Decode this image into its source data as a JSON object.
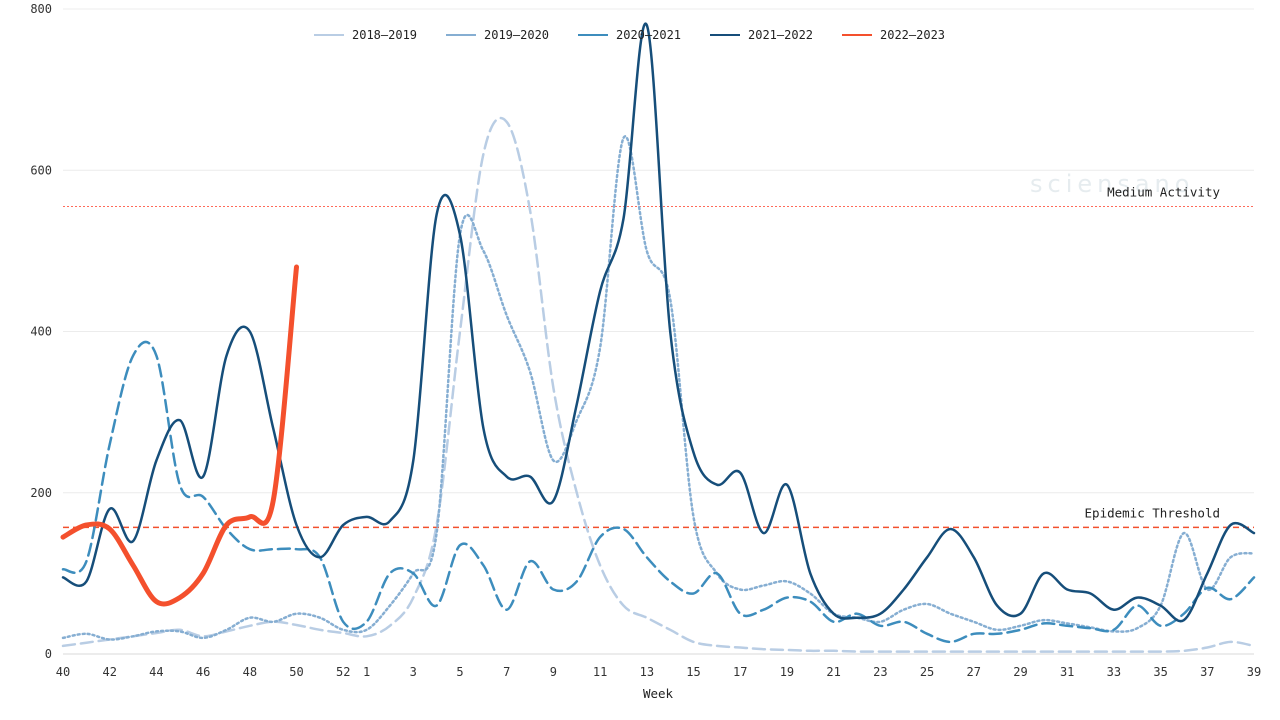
{
  "watermark": {
    "text": "sciensano"
  },
  "chart_data": {
    "type": "line",
    "title": "",
    "xlabel": "Week",
    "ylabel": "",
    "ylim": [
      0,
      800
    ],
    "yticks": [
      0,
      200,
      400,
      600,
      800
    ],
    "x": [
      40,
      41,
      42,
      43,
      44,
      45,
      46,
      47,
      48,
      49,
      50,
      51,
      52,
      1,
      2,
      3,
      4,
      5,
      6,
      7,
      8,
      9,
      10,
      11,
      12,
      13,
      14,
      15,
      16,
      17,
      18,
      19,
      20,
      21,
      22,
      23,
      24,
      25,
      26,
      27,
      28,
      29,
      30,
      31,
      32,
      33,
      34,
      35,
      36,
      37,
      38,
      39
    ],
    "xtick_labels": [
      "40",
      "42",
      "44",
      "46",
      "48",
      "50",
      "52",
      "1",
      "3",
      "5",
      "7",
      "9",
      "11",
      "13",
      "15",
      "17",
      "19",
      "21",
      "23",
      "25",
      "27",
      "29",
      "31",
      "33",
      "35",
      "37",
      "39"
    ],
    "grid": "horizontal",
    "legend_position": "top-center",
    "series": [
      {
        "name": "2018–2019",
        "color": "#b9cde4",
        "style": "dashed",
        "width": 2.5,
        "values": [
          10,
          14,
          18,
          22,
          26,
          30,
          22,
          28,
          35,
          40,
          36,
          30,
          26,
          22,
          35,
          70,
          160,
          400,
          620,
          660,
          550,
          330,
          200,
          110,
          60,
          45,
          30,
          15,
          10,
          8,
          6,
          5,
          4,
          4,
          3,
          3,
          3,
          3,
          3,
          3,
          3,
          3,
          3,
          3,
          3,
          3,
          3,
          3,
          4,
          8,
          15,
          10
        ]
      },
      {
        "name": "2019–2020",
        "color": "#86aed2",
        "style": "dotted",
        "width": 2.5,
        "values": [
          20,
          25,
          18,
          22,
          28,
          28,
          20,
          30,
          45,
          40,
          50,
          45,
          30,
          30,
          60,
          100,
          150,
          520,
          500,
          420,
          350,
          240,
          290,
          380,
          640,
          500,
          440,
          170,
          100,
          80,
          85,
          90,
          75,
          50,
          45,
          40,
          55,
          62,
          50,
          40,
          30,
          35,
          42,
          38,
          33,
          28,
          32,
          60,
          150,
          80,
          120,
          125
        ]
      },
      {
        "name": "2020–2021",
        "color": "#3d8dbd",
        "style": "dashed",
        "width": 2.5,
        "values": [
          105,
          115,
          260,
          370,
          370,
          210,
          195,
          155,
          130,
          130,
          130,
          120,
          40,
          40,
          100,
          100,
          60,
          135,
          110,
          55,
          115,
          80,
          90,
          145,
          155,
          120,
          90,
          75,
          100,
          50,
          55,
          70,
          65,
          40,
          50,
          35,
          40,
          25,
          15,
          25,
          25,
          30,
          38,
          35,
          32,
          30,
          60,
          35,
          50,
          82,
          68,
          95
        ]
      },
      {
        "name": "2021–2022",
        "color": "#164e7a",
        "style": "solid",
        "width": 2.5,
        "values": [
          95,
          90,
          180,
          140,
          240,
          290,
          220,
          370,
          400,
          280,
          160,
          120,
          160,
          170,
          165,
          240,
          545,
          520,
          280,
          220,
          220,
          190,
          310,
          450,
          540,
          780,
          400,
          250,
          210,
          225,
          150,
          210,
          100,
          50,
          45,
          50,
          80,
          120,
          155,
          120,
          60,
          50,
          100,
          80,
          75,
          55,
          70,
          60,
          42,
          100,
          160,
          150
        ]
      },
      {
        "name": "2022–2023",
        "color": "#f4502d",
        "style": "solid",
        "width": 5,
        "values": [
          145,
          160,
          155,
          110,
          65,
          70,
          100,
          160,
          170,
          190,
          480,
          null,
          null,
          null,
          null,
          null,
          null,
          null,
          null,
          null,
          null,
          null,
          null,
          null,
          null,
          null,
          null,
          null,
          null,
          null,
          null,
          null,
          null,
          null,
          null,
          null,
          null,
          null,
          null,
          null,
          null,
          null,
          null,
          null,
          null,
          null,
          null,
          null,
          null,
          null,
          null,
          null
        ]
      }
    ],
    "reference_lines": [
      {
        "label": "Medium Activity",
        "value": 555,
        "color": "#ff6b5a",
        "style": "dotted"
      },
      {
        "label": "Epidemic Threshold",
        "value": 157,
        "color": "#f4502d",
        "style": "dashed"
      }
    ]
  }
}
